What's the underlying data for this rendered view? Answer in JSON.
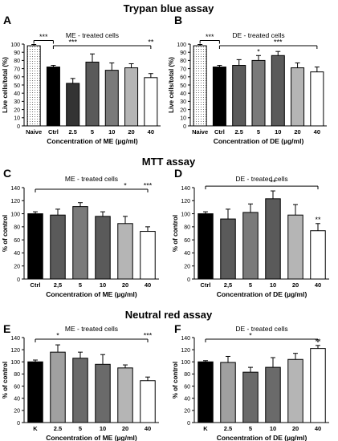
{
  "sections": [
    {
      "title": "Trypan blue assay"
    },
    {
      "title": "MTT assay"
    },
    {
      "title": "Neutral red assay"
    }
  ],
  "chart_data": [
    {
      "type": "bar",
      "panel_letter": "A",
      "subtitle": "ME - treated cells",
      "xlabel": "Concentration of ME (µg/ml)",
      "ylabel": "Live cells/total (%)",
      "ylim": [
        0,
        100
      ],
      "yticks": [
        "0",
        "10",
        "20",
        "30",
        "40",
        "50",
        "60",
        "70",
        "80",
        "90",
        "100"
      ],
      "categories": [
        "Naive",
        "Ctrl",
        "2.5",
        "5",
        "10",
        "20",
        "40"
      ],
      "values": [
        98,
        72,
        52,
        78,
        68,
        71,
        59
      ],
      "errors": [
        1.5,
        2,
        6,
        10,
        9,
        5,
        5
      ],
      "fills": [
        "dotted",
        "#000000",
        "#333333",
        "#5a5a5a",
        "#7a7a7a",
        "#b5b5b5",
        "#ffffff"
      ],
      "bar_marks": [
        "",
        "",
        "",
        "",
        "",
        "",
        ""
      ],
      "brackets": [
        {
          "from": 0,
          "to": 1,
          "label": "***"
        },
        {
          "from": 1,
          "to": 6,
          "label": "***",
          "label_at": 2
        },
        {
          "from": 1,
          "to": 6,
          "label": "**",
          "label_at": 6,
          "shared_line": true
        }
      ]
    },
    {
      "type": "bar",
      "panel_letter": "B",
      "subtitle": "DE -  treated cells",
      "xlabel": "Concentration of DE (µg/ml)",
      "ylabel": "Live cells/total (%)",
      "ylim": [
        0,
        100
      ],
      "yticks": [
        "0",
        "10",
        "20",
        "30",
        "40",
        "50",
        "60",
        "70",
        "80",
        "90",
        "100"
      ],
      "categories": [
        "Naive",
        "Ctrl",
        "2.5",
        "5",
        "10",
        "20",
        "40"
      ],
      "values": [
        98,
        72,
        74,
        80,
        86,
        71,
        66
      ],
      "errors": [
        1.5,
        2,
        7,
        6,
        5,
        6,
        6
      ],
      "fills": [
        "dotted",
        "#000000",
        "#5a5a5a",
        "#7a7a7a",
        "#5a5a5a",
        "#b5b5b5",
        "#ffffff"
      ],
      "bar_marks": [
        "",
        "",
        "",
        "*",
        "",
        "",
        ""
      ],
      "brackets": [
        {
          "from": 0,
          "to": 1,
          "label": "***"
        },
        {
          "from": 1,
          "to": 6,
          "label": "***",
          "label_at": 4
        }
      ]
    },
    {
      "type": "bar",
      "panel_letter": "C",
      "subtitle": "ME - treated cells",
      "xlabel": "Concentration of ME (µg/ml)",
      "ylabel": "% of control",
      "ylim": [
        0,
        140
      ],
      "yticks": [
        "0",
        "20",
        "40",
        "60",
        "80",
        "100",
        "120",
        "140"
      ],
      "categories": [
        "Ctrl",
        "2,5",
        "5",
        "10",
        "20",
        "40"
      ],
      "values": [
        100,
        98,
        111,
        96,
        85,
        73
      ],
      "errors": [
        3,
        9,
        6,
        7,
        11,
        7
      ],
      "fills": [
        "#000000",
        "#5a5a5a",
        "#7a7a7a",
        "#5a5a5a",
        "#b5b5b5",
        "#ffffff"
      ],
      "bar_marks": [
        "",
        "",
        "",
        "",
        "",
        ""
      ],
      "brackets": [
        {
          "from": 0,
          "to": 5,
          "label": "*",
          "label_at": 4
        },
        {
          "from": 0,
          "to": 5,
          "label": "***",
          "label_at": 5,
          "shared_line": true
        }
      ]
    },
    {
      "type": "bar",
      "panel_letter": "D",
      "subtitle": "DE - treated cells",
      "xlabel": "Concentration of DE (µg/ml)",
      "ylabel": "% of control",
      "ylim": [
        0,
        140
      ],
      "yticks": [
        "0",
        "20",
        "40",
        "60",
        "80",
        "100",
        "120",
        "140"
      ],
      "categories": [
        "Ctrl",
        "2,5",
        "5",
        "10",
        "20",
        "40"
      ],
      "values": [
        100,
        92,
        102,
        123,
        98,
        74
      ],
      "errors": [
        3,
        15,
        13,
        12,
        16,
        11
      ],
      "fills": [
        "#000000",
        "#5a5a5a",
        "#7a7a7a",
        "#5a5a5a",
        "#b5b5b5",
        "#ffffff"
      ],
      "bar_marks": [
        "",
        "",
        "",
        "",
        "",
        "**"
      ],
      "brackets": [
        {
          "from": 0,
          "to": 5,
          "label": "**",
          "label_at": 3
        }
      ]
    },
    {
      "type": "bar",
      "panel_letter": "E",
      "subtitle": "ME - treated cells",
      "xlabel": "Concentration of ME (µg/ml)",
      "ylabel": "% of control",
      "ylim": [
        0,
        140
      ],
      "yticks": [
        "0",
        "20",
        "40",
        "60",
        "80",
        "100",
        "120",
        "140"
      ],
      "categories": [
        "K",
        "2.5",
        "5",
        "10",
        "20",
        "40"
      ],
      "values": [
        100,
        116,
        106,
        96,
        90,
        69
      ],
      "errors": [
        3,
        12,
        10,
        16,
        5,
        6
      ],
      "fills": [
        "#000000",
        "#a0a0a0",
        "#6a6a6a",
        "#6a6a6a",
        "#b5b5b5",
        "#ffffff"
      ],
      "bar_marks": [
        "",
        "",
        "",
        "",
        "",
        ""
      ],
      "brackets": [
        {
          "from": 0,
          "to": 5,
          "label": "*",
          "label_at": 1
        },
        {
          "from": 0,
          "to": 5,
          "label": "***",
          "label_at": 5,
          "shared_line": true
        }
      ]
    },
    {
      "type": "bar",
      "panel_letter": "F",
      "subtitle": "DE -  treated cells",
      "xlabel": "Concentration of DE (µg/ml)",
      "ylabel": "% of control",
      "ylim": [
        0,
        140
      ],
      "yticks": [
        "0",
        "20",
        "40",
        "60",
        "80",
        "100",
        "120",
        "140"
      ],
      "categories": [
        "K",
        "2.5",
        "5",
        "10",
        "20",
        "40"
      ],
      "values": [
        100,
        99,
        83,
        91,
        104,
        122
      ],
      "errors": [
        2,
        10,
        8,
        16,
        10,
        5
      ],
      "fills": [
        "#000000",
        "#a0a0a0",
        "#6a6a6a",
        "#6a6a6a",
        "#b5b5b5",
        "#ffffff"
      ],
      "bar_marks": [
        "",
        "",
        "",
        "",
        "",
        "**"
      ],
      "brackets": [
        {
          "from": 0,
          "to": 5,
          "label": "*",
          "label_at": 2
        }
      ]
    }
  ]
}
